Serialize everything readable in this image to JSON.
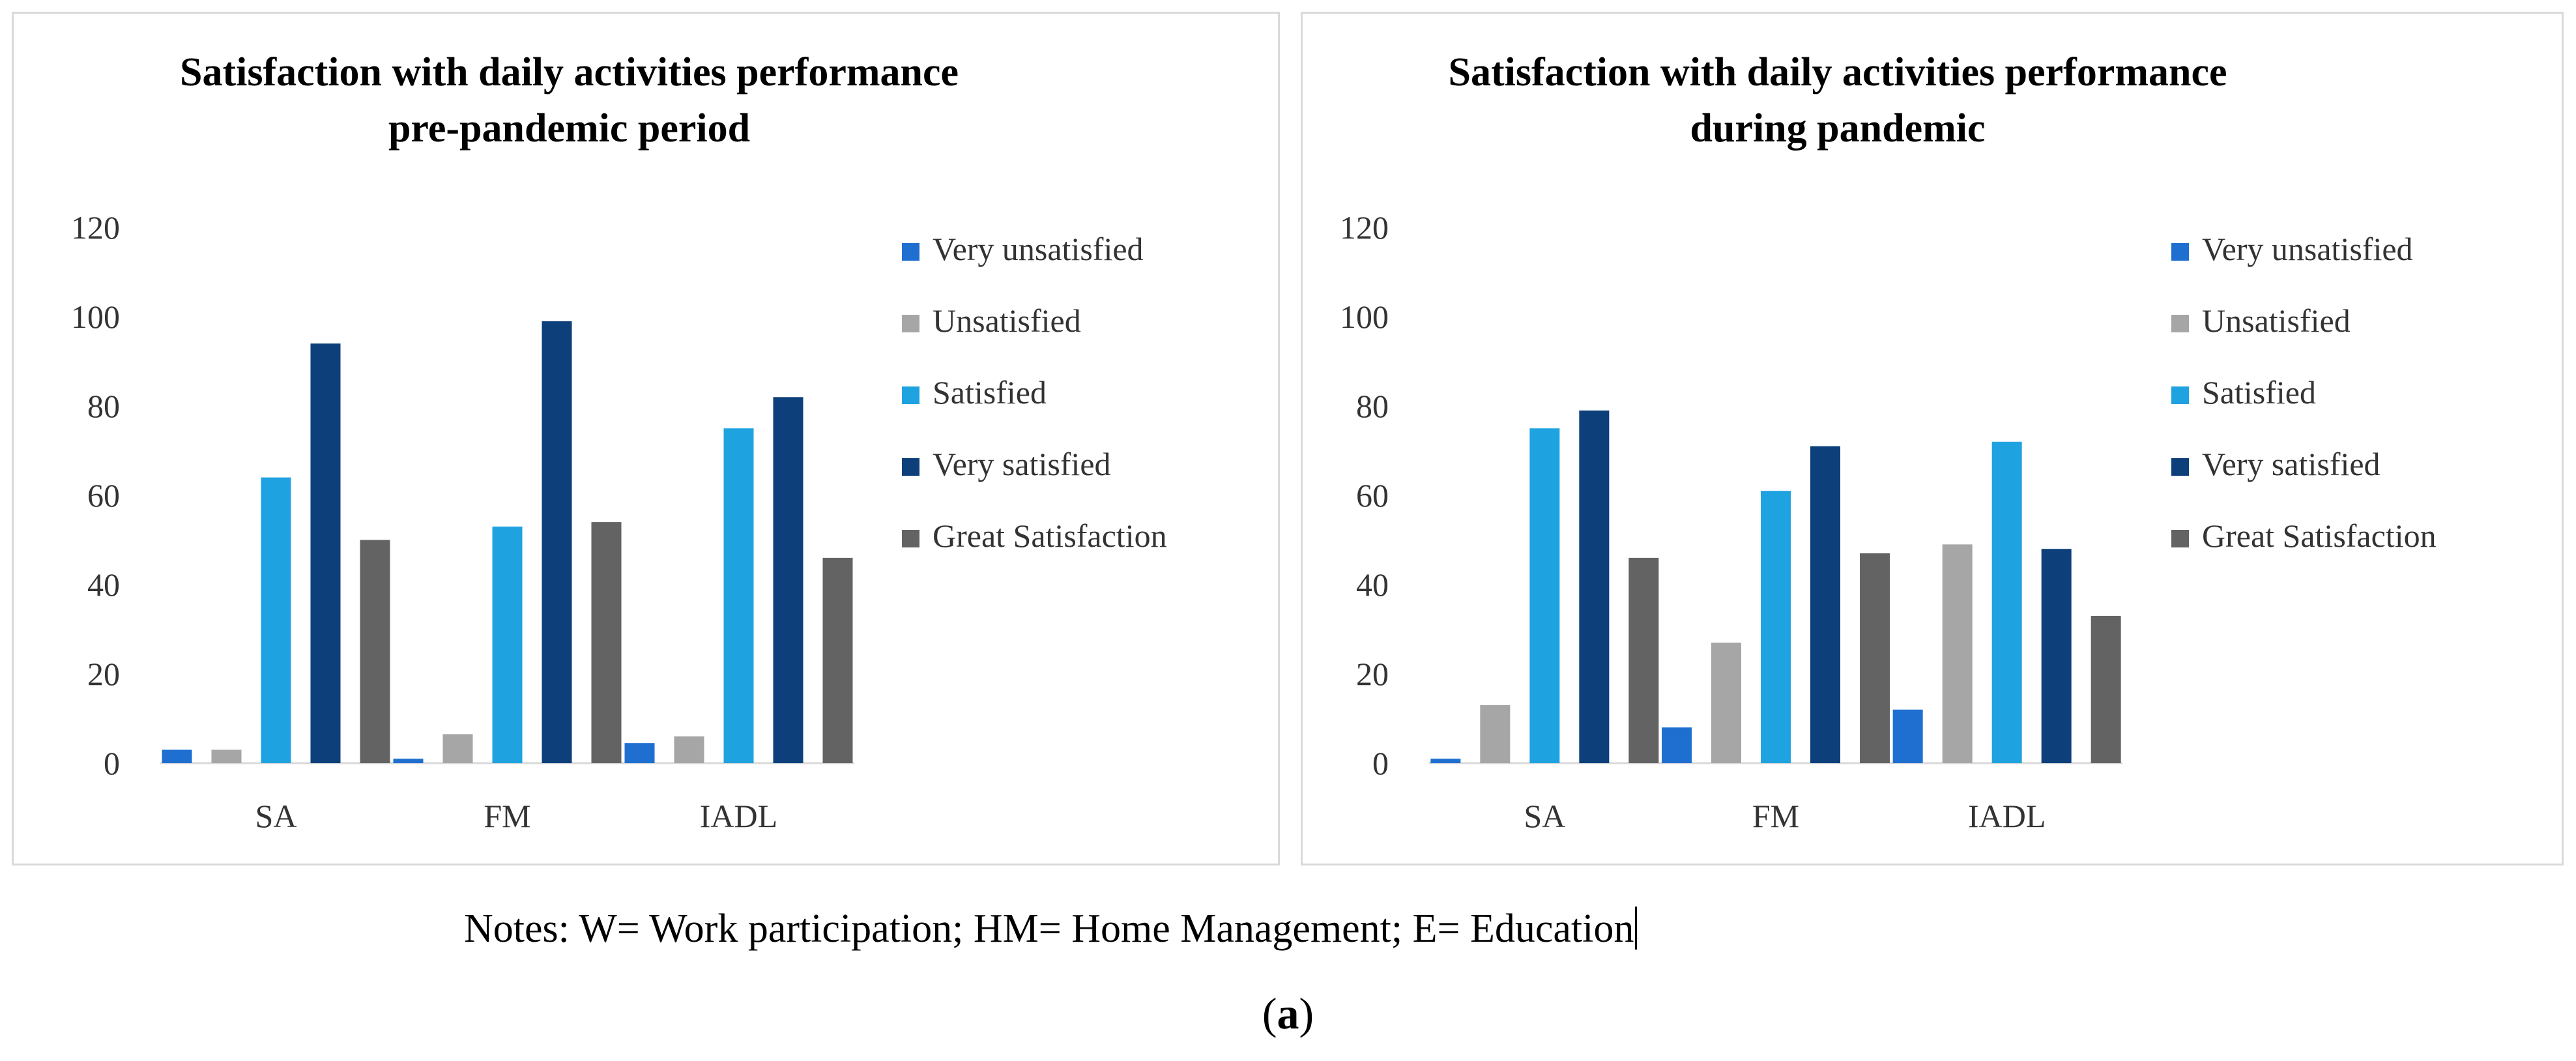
{
  "chart_data": [
    {
      "type": "bar",
      "title": "Satisfaction with daily activities performance pre-pandemic period",
      "title_lines": [
        "Satisfaction with daily activities performance",
        "pre-pandemic period"
      ],
      "categories": [
        "SA",
        "FM",
        "IADL"
      ],
      "series": [
        {
          "name": "Very unsatisfied",
          "color": "#1f6fd1",
          "values": [
            3,
            1,
            4.5
          ]
        },
        {
          "name": "Unsatisfied",
          "color": "#a6a6a6",
          "values": [
            3,
            6.5,
            6
          ]
        },
        {
          "name": "Satisfied",
          "color": "#1fa3e0",
          "values": [
            64,
            53,
            75
          ]
        },
        {
          "name": "Very satisfied",
          "color": "#0d3f7a",
          "values": [
            94,
            99,
            82
          ]
        },
        {
          "name": "Great Satisfaction",
          "color": "#636363",
          "values": [
            50,
            54,
            46
          ]
        }
      ],
      "yticks": [
        "0",
        "20",
        "40",
        "60",
        "80",
        "100",
        "120"
      ],
      "ylim": [
        0,
        120
      ],
      "xlabel": "",
      "ylabel": "",
      "legend": "right",
      "grid": false
    },
    {
      "type": "bar",
      "title": "Satisfaction with daily activities performance during pandemic",
      "title_lines": [
        "Satisfaction with daily activities performance",
        "during pandemic"
      ],
      "categories": [
        "SA",
        "FM",
        "IADL"
      ],
      "series": [
        {
          "name": "Very unsatisfied",
          "color": "#1f6fd1",
          "values": [
            1,
            8,
            12
          ]
        },
        {
          "name": "Unsatisfied",
          "color": "#a6a6a6",
          "values": [
            13,
            27,
            49
          ]
        },
        {
          "name": "Satisfied",
          "color": "#1fa3e0",
          "values": [
            75,
            61,
            72
          ]
        },
        {
          "name": "Very satisfied",
          "color": "#0d3f7a",
          "values": [
            79,
            71,
            48
          ]
        },
        {
          "name": "Great Satisfaction",
          "color": "#636363",
          "values": [
            46,
            47,
            33
          ]
        }
      ],
      "yticks": [
        "0",
        "20",
        "40",
        "60",
        "80",
        "100",
        "120"
      ],
      "ylim": [
        0,
        120
      ],
      "xlabel": "",
      "ylabel": "",
      "legend": "right",
      "grid": false
    }
  ],
  "notes": "Notes: W= Work participation; HM= Home Management; E= Education",
  "caption": {
    "open": "(",
    "letter": "a",
    "close": ")"
  }
}
